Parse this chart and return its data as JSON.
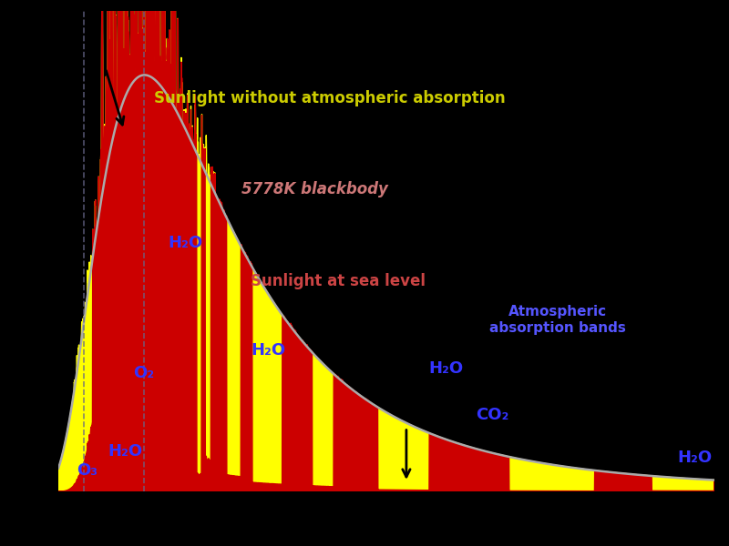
{
  "background_color": "#000000",
  "plot_bg_color": "#000000",
  "blackbody_color": "#aaaaaa",
  "space_color": "#ffff00",
  "sealevel_color": "#cc0000",
  "dashed_line_color": "#666688",
  "text_space": "Sunlight without atmospheric absorption",
  "text_space_color": "#cccc00",
  "text_bb": "5778K blackbody",
  "text_bb_color": "#cc7777",
  "text_sea": "Sunlight at sea level",
  "text_sea_color": "#cc4444",
  "text_atm": "Atmospheric\nabsorption bands",
  "text_atm_color": "#5555ff",
  "label_O3": "O₃",
  "label_O2": "O₂",
  "label_H2O_1": "H₂O",
  "label_H2O_2": "H₂O",
  "label_H2O_3": "H₂O",
  "label_H2O_4": "H₂O",
  "label_H2O_5": "H₂O",
  "label_CO2": "CO₂",
  "label_color": "#3333ff",
  "xlim": [
    0.2,
    2.5
  ],
  "ylim": [
    0.0,
    2.1
  ],
  "dashed_x1": 0.29,
  "dashed_x2": 0.5,
  "T_sun": 5778
}
